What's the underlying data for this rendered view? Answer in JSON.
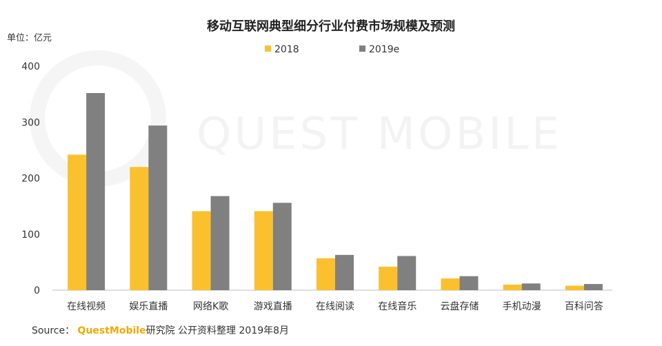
{
  "chart_data": {
    "type": "bar",
    "title": "移动互联网典型细分行业付费市场规模及预测",
    "unit_label": "单位：亿元",
    "categories": [
      "在线视频",
      "娱乐直播",
      "网络K歌",
      "游戏直播",
      "在线阅读",
      "在线音乐",
      "云盘存储",
      "手机动漫",
      "百科问答"
    ],
    "series": [
      {
        "name": "2018",
        "color": "#fbc02d",
        "values": [
          242,
          220,
          141,
          141,
          57,
          42,
          21,
          10,
          8
        ]
      },
      {
        "name": "2019e",
        "color": "#808080",
        "values": [
          352,
          294,
          168,
          156,
          63,
          61,
          25,
          12,
          11
        ]
      }
    ],
    "ylim": [
      0,
      400
    ],
    "yticks": [
      0,
      100,
      200,
      300,
      400
    ],
    "grid": false,
    "legend_position": "top-center"
  },
  "watermark": "QUEST MOBILE",
  "source": {
    "prefix": "Source：",
    "brand": "QuestMobile",
    "text": "研究院 公开资料整理 2019年8月"
  }
}
